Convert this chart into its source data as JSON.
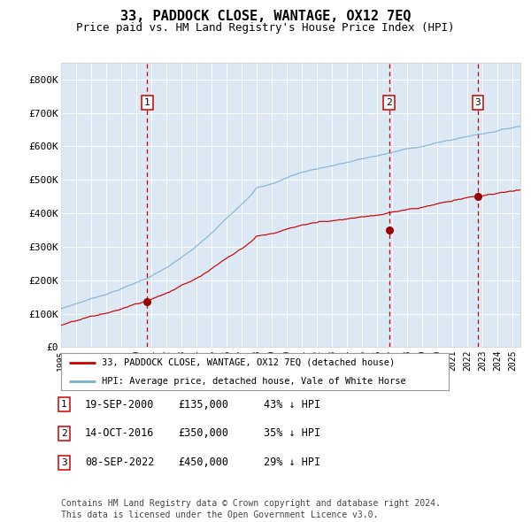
{
  "title": "33, PADDOCK CLOSE, WANTAGE, OX12 7EQ",
  "subtitle": "Price paid vs. HM Land Registry's House Price Index (HPI)",
  "title_fontsize": 11,
  "subtitle_fontsize": 9,
  "background_color": "#ffffff",
  "plot_bg_color": "#dce9f5",
  "grid_color": "#ffffff",
  "hpi_line_color": "#7bafd4",
  "price_line_color": "#cc0000",
  "marker_color": "#990000",
  "dashed_line_color": "#cc0000",
  "ylim": [
    0,
    850000
  ],
  "yticks": [
    0,
    100000,
    200000,
    300000,
    400000,
    500000,
    600000,
    700000,
    800000
  ],
  "ytick_labels": [
    "£0",
    "£100K",
    "£200K",
    "£300K",
    "£400K",
    "£500K",
    "£600K",
    "£700K",
    "£800K"
  ],
  "xstart": 1995.0,
  "xend": 2025.5,
  "sale_dates": [
    2000.72,
    2016.78,
    2022.68
  ],
  "sale_prices": [
    135000,
    350000,
    450000
  ],
  "sale_labels": [
    "1",
    "2",
    "3"
  ],
  "legend_red_label": "33, PADDOCK CLOSE, WANTAGE, OX12 7EQ (detached house)",
  "legend_blue_label": "HPI: Average price, detached house, Vale of White Horse",
  "table_data": [
    [
      "1",
      "19-SEP-2000",
      "£135,000",
      "43% ↓ HPI"
    ],
    [
      "2",
      "14-OCT-2016",
      "£350,000",
      "35% ↓ HPI"
    ],
    [
      "3",
      "08-SEP-2022",
      "£450,000",
      "29% ↓ HPI"
    ]
  ],
  "footnote": "Contains HM Land Registry data © Crown copyright and database right 2024.\nThis data is licensed under the Open Government Licence v3.0.",
  "footnote_fontsize": 7
}
